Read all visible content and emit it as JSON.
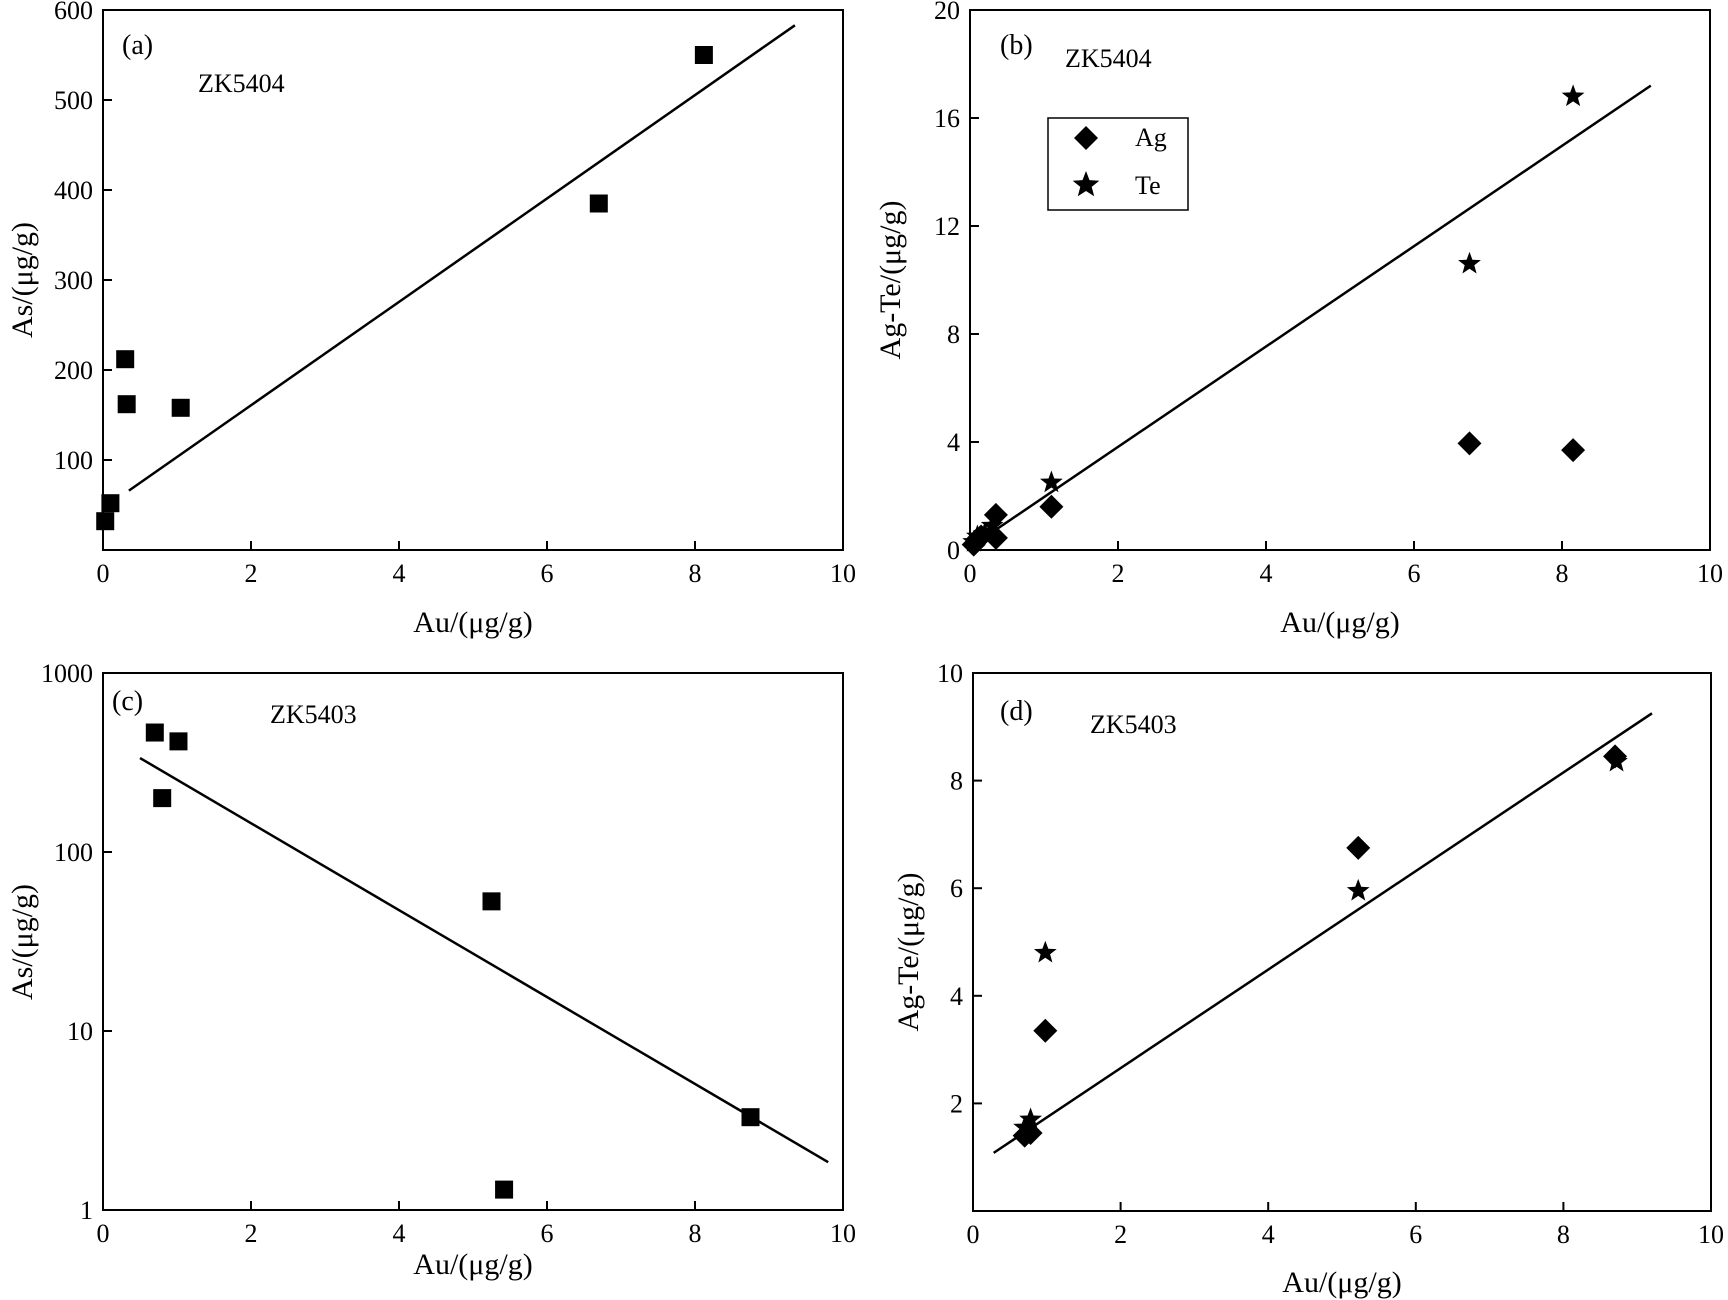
{
  "chart_data": [
    {
      "id": "a",
      "type": "scatter",
      "panel_label": "(a)",
      "annotation": "ZK5404",
      "xlabel": "Au/(μg/g)",
      "ylabel": "As/(μg/g)",
      "xscale": "linear",
      "yscale": "linear",
      "xlim": [
        0,
        10
      ],
      "ylim": [
        0,
        600
      ],
      "xticks": [
        0,
        2,
        4,
        6,
        8,
        10
      ],
      "yticks": [
        100,
        200,
        300,
        400,
        500,
        600
      ],
      "series": [
        {
          "name": "As",
          "marker": "square",
          "x": [
            0.03,
            0.1,
            0.3,
            0.32,
            1.05,
            6.7,
            8.12
          ],
          "y": [
            32,
            52,
            212,
            162,
            158,
            385,
            550
          ]
        }
      ],
      "fit_lines": [
        {
          "x": [
            0.35,
            9.35
          ],
          "y": [
            66,
            583
          ]
        }
      ],
      "legend": null
    },
    {
      "id": "b",
      "type": "scatter",
      "panel_label": "(b)",
      "annotation": "ZK5404",
      "xlabel": "Au/(μg/g)",
      "ylabel": "Ag-Te/(μg/g)",
      "xscale": "linear",
      "yscale": "linear",
      "xlim": [
        0,
        10
      ],
      "ylim": [
        0,
        20
      ],
      "xticks": [
        0,
        2,
        4,
        6,
        8,
        10
      ],
      "yticks": [
        0,
        4,
        8,
        12,
        16,
        20
      ],
      "series": [
        {
          "name": "Ag",
          "marker": "diamond",
          "x": [
            0.05,
            0.1,
            0.15,
            0.35,
            0.35,
            1.1,
            6.75,
            8.15
          ],
          "y": [
            0.2,
            0.4,
            0.5,
            1.3,
            0.45,
            1.6,
            3.95,
            3.7
          ]
        },
        {
          "name": "Te",
          "marker": "star",
          "x": [
            0.05,
            0.1,
            0.2,
            0.3,
            1.1,
            6.75,
            8.15
          ],
          "y": [
            0.3,
            0.5,
            0.6,
            0.9,
            2.5,
            10.6,
            16.8
          ]
        }
      ],
      "fit_lines": [
        {
          "x": [
            0.0,
            9.2
          ],
          "y": [
            0.1,
            17.2
          ]
        }
      ],
      "legend": {
        "position": "top-left",
        "entries": [
          "Ag",
          "Te"
        ]
      }
    },
    {
      "id": "c",
      "type": "scatter",
      "panel_label": "(c)",
      "annotation": "ZK5403",
      "xlabel": "Au/(μg/g)",
      "ylabel": "As/(μg/g)",
      "xscale": "linear",
      "yscale": "log",
      "xlim": [
        0,
        10
      ],
      "ylim": [
        1,
        1000
      ],
      "xticks": [
        0,
        2,
        4,
        6,
        8,
        10
      ],
      "yticks": [
        1,
        10,
        100,
        1000
      ],
      "series": [
        {
          "name": "As",
          "marker": "square",
          "x": [
            0.7,
            0.8,
            1.02,
            5.25,
            5.42,
            8.75
          ],
          "y": [
            465,
            200,
            415,
            53,
            1.3,
            3.3
          ]
        }
      ],
      "fit_lines": [
        {
          "x": [
            0.5,
            9.8
          ],
          "y": [
            335,
            1.85
          ]
        }
      ],
      "legend": null
    },
    {
      "id": "d",
      "type": "scatter",
      "panel_label": "(d)",
      "annotation": "ZK5403",
      "xlabel": "Au/(μg/g)",
      "ylabel": "Ag-Te/(μg/g)",
      "xscale": "linear",
      "yscale": "linear",
      "xlim": [
        0,
        10
      ],
      "ylim": [
        0,
        10
      ],
      "xticks": [
        0,
        2,
        4,
        6,
        8,
        10
      ],
      "yticks": [
        2,
        4,
        6,
        8,
        10
      ],
      "series": [
        {
          "name": "Ag",
          "marker": "diamond",
          "x": [
            0.7,
            0.78,
            0.98,
            5.22,
            8.7
          ],
          "y": [
            1.4,
            1.45,
            3.35,
            6.75,
            8.45
          ]
        },
        {
          "name": "Te",
          "marker": "star",
          "x": [
            0.7,
            0.78,
            0.98,
            5.22,
            8.72
          ],
          "y": [
            1.55,
            1.7,
            4.8,
            5.95,
            8.35
          ]
        }
      ],
      "fit_lines": [
        {
          "x": [
            0.28,
            9.2
          ],
          "y": [
            1.08,
            9.25
          ]
        }
      ],
      "legend": null
    }
  ]
}
